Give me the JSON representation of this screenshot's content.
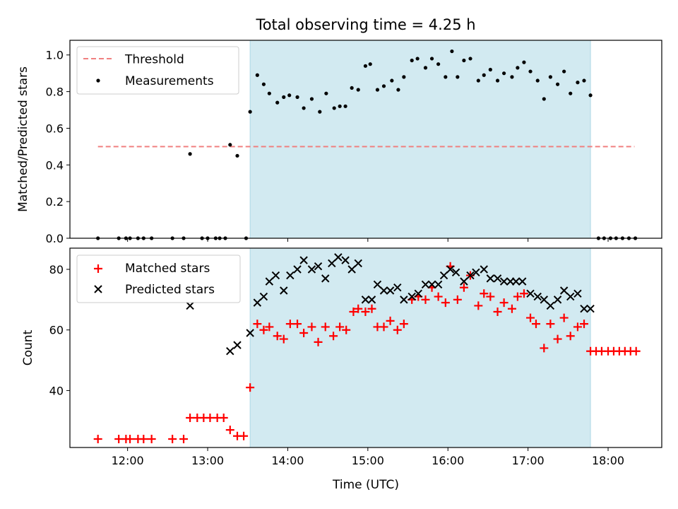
{
  "title": "Total observing time = 4.25 h",
  "xlabel": "Time (UTC)",
  "x_ticks": [
    "12:00",
    "13:00",
    "14:00",
    "15:00",
    "16:00",
    "17:00",
    "18:00"
  ],
  "colors": {
    "shade": "#add8e6",
    "threshold": "#f08080",
    "measurement": "#000000",
    "matched": "#ff0000",
    "predicted": "#000000"
  },
  "chart_data": [
    {
      "type": "scatter",
      "ylabel": "Matched/Predicted stars",
      "xlim": [
        11.28,
        18.67
      ],
      "ylim": [
        0,
        1.08
      ],
      "y_ticks": [
        "0.0",
        "0.2",
        "0.4",
        "0.6",
        "0.8",
        "1.0"
      ],
      "y_tick_values": [
        0,
        0.2,
        0.4,
        0.6,
        0.8,
        1.0
      ],
      "legend": {
        "placement": "upper-left",
        "threshold_label": "Threshold",
        "measurement_label": "Measurements"
      },
      "observing_window": [
        13.53,
        17.78
      ],
      "threshold": {
        "value": 0.5,
        "x_range": [
          11.63,
          18.33
        ]
      },
      "x": [
        11.63,
        11.89,
        11.98,
        12.03,
        12.13,
        12.2,
        12.3,
        12.56,
        12.7,
        12.78,
        12.93,
        13.0,
        13.1,
        13.15,
        13.22,
        13.28,
        13.37,
        13.48,
        13.53,
        13.62,
        13.7,
        13.77,
        13.87,
        13.95,
        14.02,
        14.12,
        14.2,
        14.3,
        14.4,
        14.48,
        14.58,
        14.65,
        14.72,
        14.8,
        14.88,
        14.97,
        15.03,
        15.12,
        15.2,
        15.3,
        15.38,
        15.45,
        15.55,
        15.62,
        15.72,
        15.8,
        15.88,
        15.97,
        16.05,
        16.12,
        16.2,
        16.28,
        16.38,
        16.45,
        16.53,
        16.62,
        16.7,
        16.8,
        16.87,
        16.95,
        17.03,
        17.12,
        17.2,
        17.28,
        17.37,
        17.45,
        17.53,
        17.62,
        17.7,
        17.78,
        17.88,
        17.95,
        18.03,
        18.1,
        18.18,
        18.26,
        18.34
      ],
      "y": [
        0,
        0,
        0,
        0,
        0,
        0,
        0,
        0,
        0,
        0.46,
        0,
        0,
        0,
        0,
        0,
        0.51,
        0.45,
        0,
        0.69,
        0.89,
        0.84,
        0.79,
        0.74,
        0.77,
        0.78,
        0.77,
        0.71,
        0.76,
        0.69,
        0.79,
        0.71,
        0.72,
        0.72,
        0.82,
        0.81,
        0.94,
        0.95,
        0.81,
        0.83,
        0.86,
        0.81,
        0.88,
        0.97,
        0.98,
        0.93,
        0.98,
        0.95,
        0.88,
        1.02,
        0.88,
        0.97,
        0.98,
        0.86,
        0.89,
        0.92,
        0.86,
        0.9,
        0.88,
        0.93,
        0.96,
        0.91,
        0.86,
        0.76,
        0.88,
        0.84,
        0.91,
        0.79,
        0.85,
        0.86,
        0.78,
        0,
        0,
        0,
        0,
        0,
        0,
        0
      ]
    },
    {
      "type": "scatter",
      "ylabel": "Count",
      "xlim": [
        11.28,
        18.67
      ],
      "ylim": [
        21.2,
        87
      ],
      "y_ticks": [
        "40",
        "60",
        "80"
      ],
      "y_tick_values": [
        40,
        60,
        80
      ],
      "legend": {
        "placement": "upper-left"
      },
      "observing_window": [
        13.53,
        17.78
      ],
      "series": [
        {
          "name": "Matched stars",
          "marker": "plus",
          "x": [
            11.63,
            11.89,
            11.98,
            12.03,
            12.13,
            12.2,
            12.3,
            12.56,
            12.7,
            12.78,
            12.87,
            12.95,
            13.03,
            13.12,
            13.2,
            13.28,
            13.37,
            13.45,
            13.53,
            13.62,
            13.7,
            13.77,
            13.87,
            13.95,
            14.03,
            14.12,
            14.2,
            14.3,
            14.38,
            14.47,
            14.57,
            14.65,
            14.73,
            14.82,
            14.88,
            14.97,
            15.05,
            15.12,
            15.2,
            15.28,
            15.37,
            15.45,
            15.55,
            15.63,
            15.72,
            15.8,
            15.88,
            15.97,
            16.03,
            16.12,
            16.2,
            16.28,
            16.38,
            16.45,
            16.53,
            16.62,
            16.7,
            16.8,
            16.87,
            16.95,
            17.03,
            17.1,
            17.2,
            17.28,
            17.37,
            17.45,
            17.53,
            17.62,
            17.7,
            17.78,
            17.85,
            17.92,
            18.0,
            18.07,
            18.14,
            18.21,
            18.28,
            18.35
          ],
          "y": [
            24,
            24,
            24,
            24,
            24,
            24,
            24,
            24,
            24,
            31,
            31,
            31,
            31,
            31,
            31,
            27,
            25,
            25,
            41,
            62,
            60,
            61,
            58,
            57,
            62,
            62,
            59,
            61,
            56,
            61,
            58,
            61,
            60,
            66,
            67,
            66,
            67,
            61,
            61,
            63,
            60,
            62,
            70,
            71,
            70,
            74,
            71,
            69,
            81,
            70,
            74,
            78,
            68,
            72,
            71,
            66,
            69,
            67,
            71,
            72,
            64,
            62,
            54,
            62,
            57,
            64,
            58,
            61,
            62,
            53,
            53,
            53,
            53,
            53,
            53,
            53,
            53,
            53
          ]
        },
        {
          "name": "Predicted stars",
          "marker": "x",
          "x": [
            12.78,
            13.28,
            13.37,
            13.53,
            13.62,
            13.7,
            13.77,
            13.85,
            13.95,
            14.03,
            14.12,
            14.2,
            14.3,
            14.38,
            14.47,
            14.55,
            14.63,
            14.72,
            14.8,
            14.88,
            14.97,
            15.05,
            15.12,
            15.2,
            15.28,
            15.37,
            15.45,
            15.55,
            15.63,
            15.72,
            15.8,
            15.88,
            15.95,
            16.03,
            16.1,
            16.2,
            16.28,
            16.35,
            16.45,
            16.53,
            16.62,
            16.7,
            16.78,
            16.85,
            16.93,
            17.03,
            17.12,
            17.2,
            17.28,
            17.37,
            17.45,
            17.53,
            17.62,
            17.7,
            17.78
          ],
          "y": [
            68,
            53,
            55,
            59,
            69,
            71,
            76,
            78,
            73,
            78,
            80,
            83,
            80,
            81,
            77,
            82,
            84,
            83,
            80,
            82,
            70,
            70,
            75,
            73,
            73,
            74,
            70,
            71,
            72,
            75,
            75,
            75,
            78,
            80,
            79,
            76,
            78,
            79,
            80,
            77,
            77,
            76,
            76,
            76,
            76,
            72,
            71,
            70,
            68,
            70,
            73,
            71,
            72,
            67,
            67
          ]
        }
      ]
    }
  ]
}
